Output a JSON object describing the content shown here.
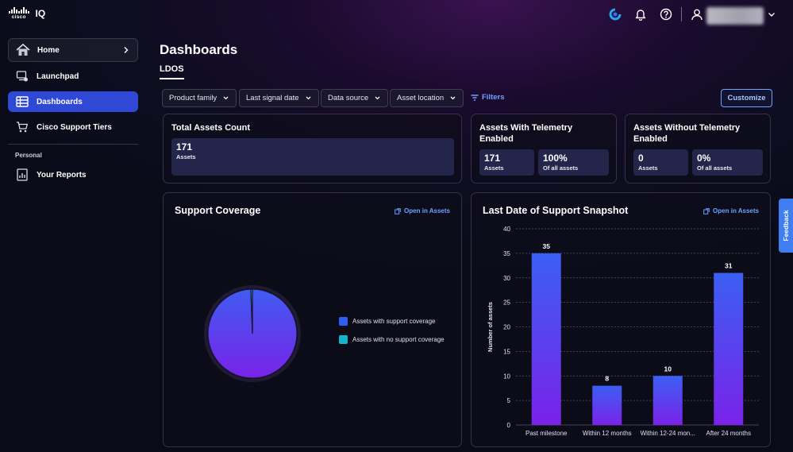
{
  "header": {
    "brand": "cisco",
    "app_name": "IQ",
    "icons": [
      "webex-icon",
      "bell-icon",
      "help-icon",
      "user-icon",
      "chevron-down-icon"
    ]
  },
  "sidebar": {
    "items": [
      {
        "label": "Home",
        "icon": "home-icon"
      },
      {
        "label": "Launchpad",
        "icon": "launchpad-icon"
      },
      {
        "label": "Dashboards",
        "icon": "dashboards-icon"
      },
      {
        "label": "Cisco Support Tiers",
        "icon": "cart-icon"
      }
    ],
    "section_label": "Personal",
    "personal_items": [
      {
        "label": "Your Reports",
        "icon": "reports-icon"
      }
    ]
  },
  "main": {
    "title": "Dashboards",
    "tab": "LDOS",
    "filters": [
      "Product family",
      "Last signal date",
      "Data source",
      "Asset location"
    ],
    "filters_link": "Filters",
    "customize": "Customize"
  },
  "cards": {
    "total": {
      "title": "Total Assets Count",
      "value": "171",
      "label": "Assets"
    },
    "with_telemetry": {
      "title": "Assets With Telemetry Enabled",
      "stat1_value": "171",
      "stat1_label": "Assets",
      "stat2_value": "100%",
      "stat2_label": "Of all assets"
    },
    "without_telemetry": {
      "title": "Assets Without Telemetry Enabled",
      "stat1_value": "0",
      "stat1_label": "Assets",
      "stat2_value": "0%",
      "stat2_label": "Of all assets"
    }
  },
  "support_coverage": {
    "title": "Support Coverage",
    "open_link": "Open in Assets"
  },
  "snapshot": {
    "title": "Last Date of Support Snapshot",
    "open_link": "Open in Assets"
  },
  "chart_data": [
    {
      "type": "pie",
      "categories": [
        "Assets with support coverage",
        "Assets with no support coverage"
      ],
      "values": [
        170,
        1
      ],
      "colors": [
        "#2f5ef0",
        "#12b5cb"
      ]
    },
    {
      "type": "bar",
      "categories": [
        "Past milestone",
        "Within 12 months",
        "Within 12-24 mon...",
        "After 24 months"
      ],
      "values": [
        35,
        8,
        10,
        31
      ],
      "ylabel": "Number of assets",
      "ylim": [
        0,
        40
      ],
      "yticks": [
        0,
        5,
        10,
        15,
        20,
        25,
        30,
        35,
        40
      ],
      "grid": true,
      "color_top": "#3b5ff4",
      "color_bottom": "#7a22e8"
    }
  ],
  "feedback": "Feedback"
}
